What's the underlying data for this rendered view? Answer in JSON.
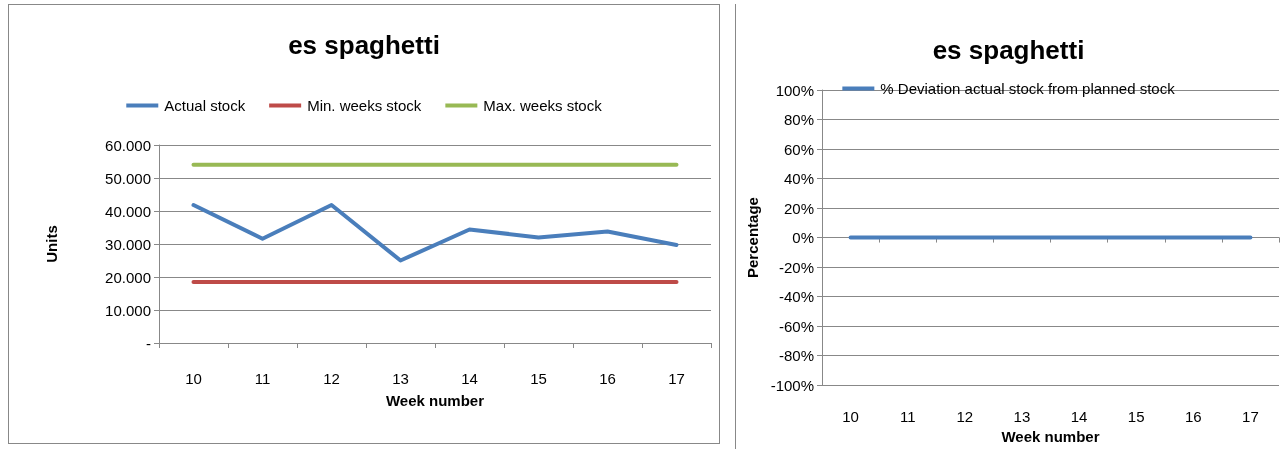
{
  "chart_data": [
    {
      "type": "line",
      "title": "es spaghetti",
      "xlabel": "Week number",
      "ylabel": "Units",
      "categories": [
        "10",
        "11",
        "12",
        "13",
        "14",
        "15",
        "16",
        "17"
      ],
      "series": [
        {
          "name": "Actual stock",
          "color": "#4a7ebb",
          "values": [
            41800,
            31600,
            41800,
            25000,
            34400,
            32000,
            33800,
            29700
          ]
        },
        {
          "name": "Min. weeks stock",
          "color": "#be4b48",
          "values": [
            18500,
            18500,
            18500,
            18500,
            18500,
            18500,
            18500,
            18500
          ]
        },
        {
          "name": "Max. weeks stock",
          "color": "#98b954",
          "values": [
            54000,
            54000,
            54000,
            54000,
            54000,
            54000,
            54000,
            54000
          ]
        }
      ],
      "ylim": [
        0,
        60000
      ],
      "yticks": [
        {
          "value": 0,
          "label": "-"
        },
        {
          "value": 10000,
          "label": "10.000"
        },
        {
          "value": 20000,
          "label": "20.000"
        },
        {
          "value": 30000,
          "label": "30.000"
        },
        {
          "value": 40000,
          "label": "40.000"
        },
        {
          "value": 50000,
          "label": "50.000"
        },
        {
          "value": 60000,
          "label": "60.000"
        }
      ],
      "grid": "y",
      "legend": "top",
      "marker": "none",
      "line_style": "solid"
    },
    {
      "type": "line",
      "title": "es spaghetti",
      "xlabel": "Week number",
      "ylabel": "Percentage",
      "categories": [
        "10",
        "11",
        "12",
        "13",
        "14",
        "15",
        "16",
        "17"
      ],
      "series": [
        {
          "name": "% Deviation actual stock from planned stock",
          "color": "#4a7ebb",
          "values": [
            0,
            0,
            0,
            0,
            0,
            0,
            0,
            0
          ]
        }
      ],
      "ylim": [
        -100,
        100
      ],
      "yticks": [
        {
          "value": -100,
          "label": "-100%"
        },
        {
          "value": -80,
          "label": "-80%"
        },
        {
          "value": -60,
          "label": "-60%"
        },
        {
          "value": -40,
          "label": "-40%"
        },
        {
          "value": -20,
          "label": "-20%"
        },
        {
          "value": 0,
          "label": "0%"
        },
        {
          "value": 20,
          "label": "20%"
        },
        {
          "value": 40,
          "label": "40%"
        },
        {
          "value": 60,
          "label": "60%"
        },
        {
          "value": 80,
          "label": "80%"
        },
        {
          "value": 100,
          "label": "100%"
        }
      ],
      "grid": "y",
      "legend": "top",
      "marker": "none",
      "line_style": "solid"
    }
  ]
}
